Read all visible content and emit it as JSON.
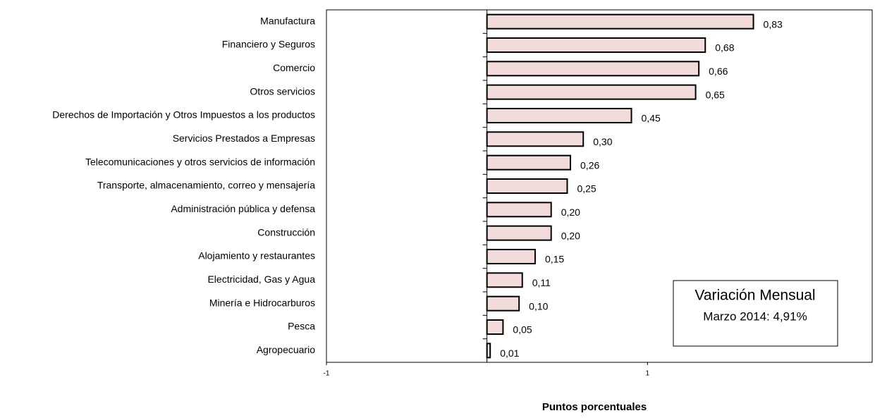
{
  "chart_data": {
    "type": "bar",
    "orientation": "horizontal",
    "categories": [
      "Manufactura",
      "Financiero y Seguros",
      "Comercio",
      "Otros servicios",
      "Derechos de Importación y Otros Impuestos a los productos",
      "Servicios Prestados a Empresas",
      "Telecomunicaciones y otros servicios de información",
      "Transporte, almacenamiento, correo y mensajería",
      "Administración pública y defensa",
      "Construcción",
      "Alojamiento y restaurantes",
      "Electricidad, Gas y Agua",
      "Minería e Hidrocarburos",
      "Pesca",
      "Agropecuario"
    ],
    "values": [
      0.83,
      0.68,
      0.66,
      0.65,
      0.45,
      0.3,
      0.26,
      0.25,
      0.2,
      0.2,
      0.15,
      0.11,
      0.1,
      0.05,
      0.01
    ],
    "value_labels": [
      "0,83",
      "0,68",
      "0,66",
      "0,65",
      "0,45",
      "0,30",
      "0,26",
      "0,25",
      "0,20",
      "0,20",
      "0,15",
      "0,11",
      "0,10",
      "0,05",
      "0,01"
    ],
    "color": "#f2dcdb",
    "xlim": [
      -0.5,
      1.2
    ],
    "xticks": [
      {
        "value": -0.5,
        "label": "-1"
      },
      {
        "value": 0.5,
        "label": "1"
      }
    ],
    "x_label": "Puntos porcentuales",
    "annotation": [
      "Variación Mensual",
      "Marzo 2014: 4,91%"
    ]
  }
}
